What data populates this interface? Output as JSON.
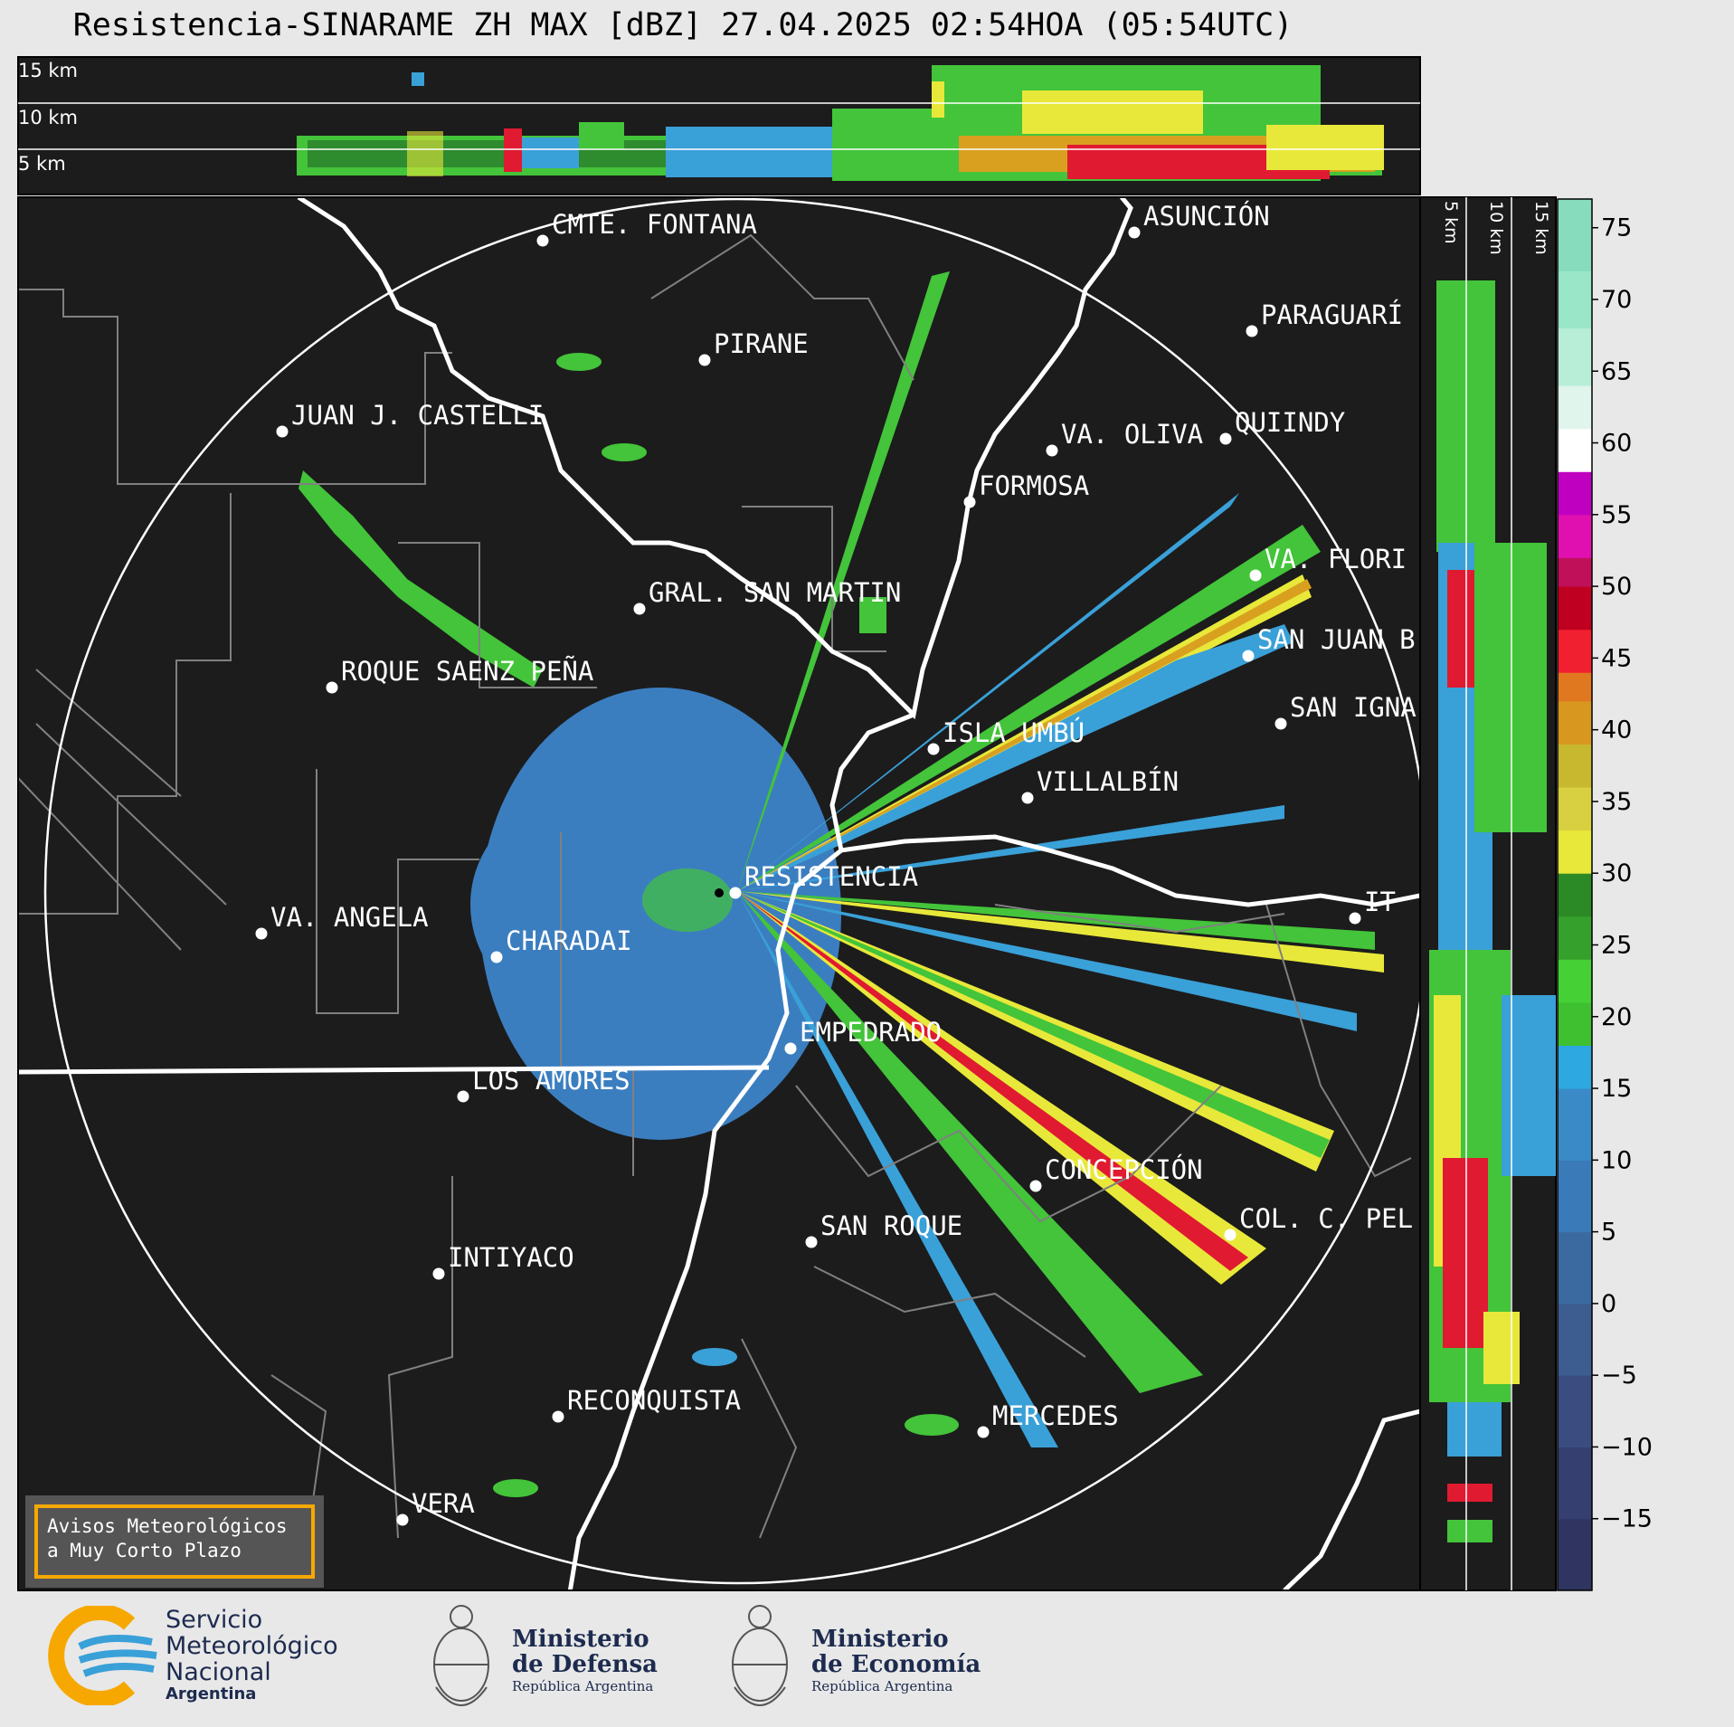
{
  "title": "Resistencia-SINARAME ZH MAX [dBZ] 27.04.2025 02:54HOA (05:54UTC)",
  "top_panel_labels": [
    "15 km",
    "10 km",
    "5 km"
  ],
  "side_panel_labels": [
    "5 km",
    "10 km",
    "15 km"
  ],
  "colorbar": {
    "ticks": [
      "75",
      "70",
      "65",
      "60",
      "55",
      "50",
      "45",
      "40",
      "35",
      "30",
      "25",
      "20",
      "15",
      "10",
      "5",
      "0",
      "−5",
      "−10",
      "−15"
    ],
    "min": -20,
    "max": 77
  },
  "cities": [
    {
      "name": "CMTE. FONTANA"
    },
    {
      "name": "PIRANE"
    },
    {
      "name": "ASUNCIÓN"
    },
    {
      "name": "PARAGUARÍ"
    },
    {
      "name": "JUAN J. CASTELLI"
    },
    {
      "name": "VA. OLIVA"
    },
    {
      "name": "QUIINDY"
    },
    {
      "name": "FORMOSA"
    },
    {
      "name": "VA. FLORI"
    },
    {
      "name": "GRAL. SAN MARTIN"
    },
    {
      "name": "SAN JUAN B"
    },
    {
      "name": "ROQUE SAENZ PEÑA"
    },
    {
      "name": "SAN IGNA"
    },
    {
      "name": "ISLA UMBÚ"
    },
    {
      "name": "VILLALBÍN"
    },
    {
      "name": "RESISTENCIA"
    },
    {
      "name": "VA. ANGELA"
    },
    {
      "name": "CHARADAI"
    },
    {
      "name": "IT"
    },
    {
      "name": "EMPEDRADO"
    },
    {
      "name": "LOS AMORES"
    },
    {
      "name": "CONCEPCIÓN"
    },
    {
      "name": "SAN ROQUE"
    },
    {
      "name": "COL. C. PEL"
    },
    {
      "name": "INTIYACO"
    },
    {
      "name": "RECONQUISTA"
    },
    {
      "name": "MERCEDES"
    },
    {
      "name": "VERA"
    }
  ],
  "aviso": {
    "line1": "Avisos Meteorológicos",
    "line2": "a Muy Corto Plazo"
  },
  "footer": {
    "smn": {
      "line1": "Servicio",
      "line2": "Meteorológico",
      "line3": "Nacional",
      "line4": "Argentina"
    },
    "defensa": {
      "line1": "Ministerio",
      "line2": "de Defensa",
      "line3": "República Argentina"
    },
    "economia": {
      "line1": "Ministerio",
      "line2": "de Economía",
      "line3": "República Argentina"
    }
  },
  "colors": {
    "map_bg": "#1c1c1c",
    "accent": "#f6a800",
    "footer_text": "#1d2b4f"
  }
}
